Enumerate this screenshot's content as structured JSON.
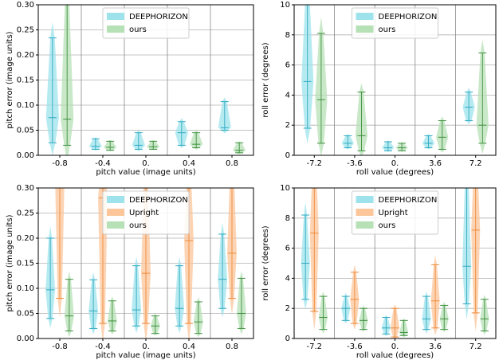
{
  "chart_data": [
    {
      "type": "violin",
      "x_label": "pitch value (image units)",
      "y_label": "pitch error (image units)",
      "categories": [
        "-0.8",
        "-0.4",
        "0.",
        "0.4",
        "0.8"
      ],
      "ylim": [
        0,
        0.3
      ],
      "yticks": [
        {
          "value": 0,
          "label": "0.00"
        },
        {
          "value": 0.05,
          "label": "0.05"
        },
        {
          "value": 0.1,
          "label": "0.10"
        },
        {
          "value": 0.15,
          "label": "0.15"
        },
        {
          "value": 0.2,
          "label": "0.20"
        },
        {
          "value": 0.25,
          "label": "0.25"
        },
        {
          "value": 0.3,
          "label": "0.30"
        }
      ],
      "grid": true,
      "legend": "upper center",
      "series": [
        {
          "name": "DEEPHORIZON",
          "color": "#9ee3ec",
          "line_color": "#2fa9c0",
          "low": [
            0.025,
            0.012,
            0.012,
            0.02,
            0.05
          ],
          "median": [
            0.075,
            0.018,
            0.02,
            0.045,
            0.055
          ],
          "high": [
            0.234,
            0.033,
            0.045,
            0.067,
            0.107
          ]
        },
        {
          "name": "ours",
          "color": "#b6e0b6",
          "line_color": "#3f8f3f",
          "low": [
            0.02,
            0.01,
            0.012,
            0.015,
            0.005
          ],
          "median": [
            0.072,
            0.016,
            0.017,
            0.022,
            0.01
          ],
          "high": [
            0.3,
            0.028,
            0.028,
            0.045,
            0.025
          ]
        }
      ]
    },
    {
      "type": "violin",
      "x_label": "roll value (degrees)",
      "y_label": "roll error (degrees)",
      "categories": [
        "-7.2",
        "-3.6",
        "0.",
        "3.6",
        "7.2"
      ],
      "ylim": [
        0,
        10
      ],
      "yticks": [
        0,
        2,
        4,
        6,
        8,
        10
      ],
      "grid": true,
      "legend": "upper center",
      "series": [
        {
          "name": "DEEPHORIZON",
          "color": "#9ee3ec",
          "line_color": "#2fa9c0",
          "low": [
            1.8,
            0.5,
            0.3,
            0.5,
            2.3
          ],
          "median": [
            4.9,
            0.8,
            0.5,
            0.8,
            3.2
          ],
          "high": [
            10.5,
            1.3,
            0.9,
            1.3,
            4.2
          ]
        },
        {
          "name": "ours",
          "color": "#b6e0b6",
          "line_color": "#3f8f3f",
          "low": [
            0.8,
            0.3,
            0.3,
            0.4,
            0.8
          ],
          "median": [
            3.7,
            1.3,
            0.5,
            1.2,
            2.0
          ],
          "high": [
            8.1,
            4.2,
            0.8,
            2.3,
            6.8
          ]
        }
      ]
    },
    {
      "type": "violin",
      "x_label": "pitch value (image units)",
      "y_label": "pitch error (image units)",
      "categories": [
        "-0.8",
        "-0.4",
        "0.",
        "0.4",
        "0.8"
      ],
      "ylim": [
        0,
        0.3
      ],
      "yticks": [
        {
          "value": 0,
          "label": "0.00"
        },
        {
          "value": 0.05,
          "label": "0.05"
        },
        {
          "value": 0.1,
          "label": "0.10"
        },
        {
          "value": 0.15,
          "label": "0.15"
        },
        {
          "value": 0.2,
          "label": "0.20"
        },
        {
          "value": 0.25,
          "label": "0.25"
        },
        {
          "value": 0.3,
          "label": "0.30"
        }
      ],
      "grid": true,
      "legend": "upper center",
      "series": [
        {
          "name": "DEEPHORIZON",
          "color": "#9ee3ec",
          "line_color": "#2fa9c0",
          "low": [
            0.04,
            0.02,
            0.025,
            0.025,
            0.06
          ],
          "median": [
            0.097,
            0.055,
            0.057,
            0.06,
            0.118
          ],
          "high": [
            0.2,
            0.117,
            0.145,
            0.145,
            0.208
          ]
        },
        {
          "name": "Upright",
          "color": "#fcc69a",
          "line_color": "#ec8a3a",
          "low": [
            0.08,
            0.03,
            0.03,
            0.03,
            0.08
          ],
          "median": [
            0.32,
            0.28,
            0.13,
            0.195,
            0.17
          ],
          "high": [
            0.4,
            0.35,
            0.35,
            0.35,
            0.35
          ]
        },
        {
          "name": "ours",
          "color": "#b6e0b6",
          "line_color": "#3f8f3f",
          "low": [
            0.015,
            0.015,
            0.01,
            0.01,
            0.02
          ],
          "median": [
            0.045,
            0.035,
            0.025,
            0.033,
            0.05
          ],
          "high": [
            0.118,
            0.075,
            0.045,
            0.073,
            0.12
          ]
        }
      ]
    },
    {
      "type": "violin",
      "x_label": "roll value (degrees)",
      "y_label": "roll error (degrees)",
      "categories": [
        "-7.2",
        "-3.6",
        "0.",
        "3.6",
        "7.2"
      ],
      "ylim": [
        0,
        10
      ],
      "yticks": [
        0,
        2,
        4,
        6,
        8,
        10
      ],
      "grid": true,
      "legend": "upper center",
      "series": [
        {
          "name": "DEEPHORIZON",
          "color": "#9ee3ec",
          "line_color": "#2fa9c0",
          "low": [
            2.6,
            1.2,
            0.3,
            0.6,
            2.3
          ],
          "median": [
            5.0,
            2.0,
            0.7,
            1.3,
            4.8
          ],
          "high": [
            8.2,
            2.8,
            1.4,
            2.8,
            11
          ]
        },
        {
          "name": "Upright",
          "color": "#fcc69a",
          "line_color": "#ec8a3a",
          "low": [
            1.8,
            1.0,
            0.1,
            0.7,
            1.7
          ],
          "median": [
            7.0,
            2.6,
            0.7,
            2.5,
            7.2
          ],
          "high": [
            12,
            4.4,
            2.0,
            4.9,
            12
          ]
        },
        {
          "name": "ours",
          "color": "#b6e0b6",
          "line_color": "#3f8f3f",
          "low": [
            0.6,
            0.6,
            0.2,
            0.6,
            0.5
          ],
          "median": [
            1.4,
            1.2,
            0.4,
            1.3,
            1.3
          ],
          "high": [
            2.8,
            2.0,
            1.2,
            2.2,
            2.6
          ]
        }
      ]
    }
  ]
}
